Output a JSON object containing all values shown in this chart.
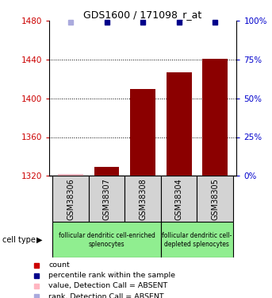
{
  "title": "GDS1600 / 171098_r_at",
  "samples": [
    "GSM38306",
    "GSM38307",
    "GSM38308",
    "GSM38304",
    "GSM38305"
  ],
  "count_values": [
    1322,
    1329,
    1410,
    1427,
    1441
  ],
  "count_absent": [
    true,
    false,
    false,
    false,
    false
  ],
  "rank_values": [
    99,
    99,
    99,
    99,
    99
  ],
  "rank_absent": [
    true,
    false,
    false,
    false,
    false
  ],
  "ylim_left": [
    1320,
    1480
  ],
  "ylim_right": [
    0,
    100
  ],
  "yticks_left": [
    1320,
    1360,
    1400,
    1440,
    1480
  ],
  "yticks_right": [
    0,
    25,
    50,
    75,
    100
  ],
  "groups": [
    {
      "indices": [
        0,
        1,
        2
      ],
      "label": "follicular dendritic cell-enriched\nsplenocytes",
      "color": "#90EE90"
    },
    {
      "indices": [
        3,
        4
      ],
      "label": "follicular dendritic cell-\ndepleted splenocytes",
      "color": "#90EE90"
    }
  ],
  "bar_color_normal": "#8B0000",
  "bar_color_absent": "#FFB6C1",
  "dot_color_normal": "#00008B",
  "dot_color_absent": "#AAAADD",
  "ylabel_left_color": "#CC0000",
  "ylabel_right_color": "#0000CC",
  "sample_box_color": "#D3D3D3",
  "bar_width": 0.7,
  "grid_ticks": [
    1360,
    1400,
    1440
  ],
  "legend_items": [
    {
      "color": "#CC0000",
      "label": "count"
    },
    {
      "color": "#00008B",
      "label": "percentile rank within the sample"
    },
    {
      "color": "#FFB6C1",
      "label": "value, Detection Call = ABSENT"
    },
    {
      "color": "#AAAADD",
      "label": "rank, Detection Call = ABSENT"
    }
  ]
}
